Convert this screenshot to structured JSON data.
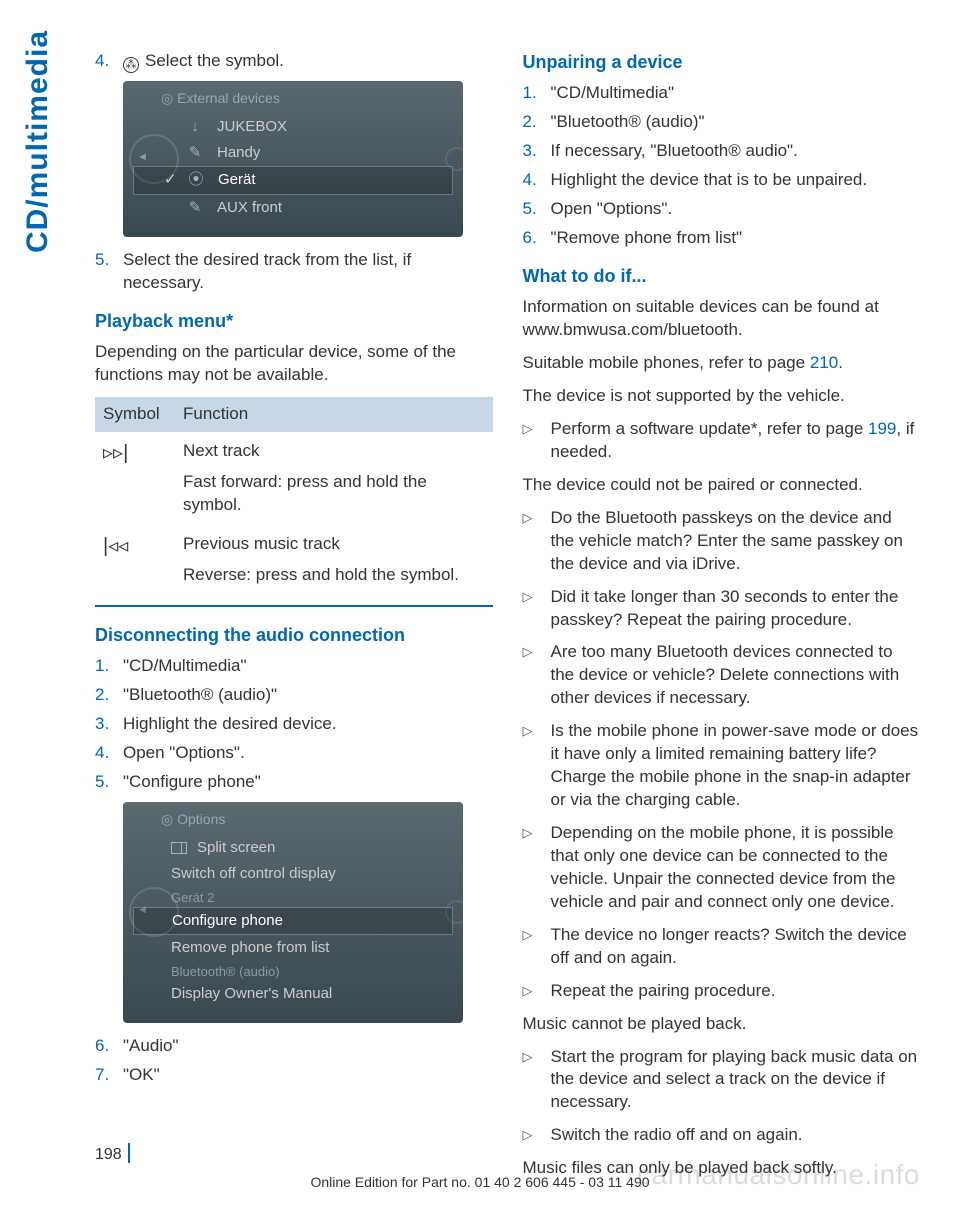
{
  "side_tab": "CD/multimedia",
  "watermark": "carmanualsonline.info",
  "page_number": "198",
  "footer_line": "Online Edition for Part no. 01 40 2 606 445 - 03 11 490",
  "left": {
    "step4": {
      "num": "4.",
      "text": "Select the symbol."
    },
    "shot1": {
      "header": "External devices",
      "rows": [
        {
          "icon": "↓",
          "label": "JUKEBOX"
        },
        {
          "icon": "✎",
          "label": "Handy"
        },
        {
          "icon": "⦿",
          "label": "Gerät"
        },
        {
          "icon": "✎",
          "label": "AUX front"
        }
      ]
    },
    "step5": {
      "num": "5.",
      "text": "Select the desired track from the list, if necessary."
    },
    "playback_h": "Playback menu*",
    "playback_p": "Depending on the particular device, some of the functions may not be available.",
    "tbl": {
      "h1": "Symbol",
      "h2": "Function",
      "r1_sym": "▷▷|",
      "r1a": "Next track",
      "r1b": "Fast forward: press and hold the symbol.",
      "r2_sym": "|◁◁",
      "r2a": "Previous music track",
      "r2b": "Reverse: press and hold the symbol."
    },
    "disc_h": "Disconnecting the audio connection",
    "disc_steps": [
      {
        "num": "1.",
        "text": "\"CD/Multimedia\""
      },
      {
        "num": "2.",
        "text": "\"Bluetooth® (audio)\""
      },
      {
        "num": "3.",
        "text": "Highlight the desired device."
      },
      {
        "num": "4.",
        "text": "Open \"Options\"."
      },
      {
        "num": "5.",
        "text": "\"Configure phone\""
      }
    ],
    "shot2": {
      "header": "Options",
      "rows_top": [
        {
          "label": "Split screen",
          "split": true
        },
        {
          "label": "Switch off control display"
        }
      ],
      "sec1": "Gerät 2",
      "rows_mid": [
        {
          "label": "Configure phone",
          "hl": true
        },
        {
          "label": "Remove phone from list"
        }
      ],
      "sec2": "Bluetooth® (audio)",
      "rows_bot": [
        {
          "label": "Display Owner's Manual"
        }
      ]
    },
    "step6": {
      "num": "6.",
      "text": "\"Audio\""
    },
    "step7": {
      "num": "7.",
      "text": "\"OK\""
    }
  },
  "right": {
    "unpair_h": "Unpairing a device",
    "unpair_steps": [
      {
        "num": "1.",
        "text": "\"CD/Multimedia\""
      },
      {
        "num": "2.",
        "text": "\"Bluetooth® (audio)\""
      },
      {
        "num": "3.",
        "text": "If necessary, \"Bluetooth® audio\"."
      },
      {
        "num": "4.",
        "text": "Highlight the device that is to be unpaired."
      },
      {
        "num": "5.",
        "text": "Open \"Options\"."
      },
      {
        "num": "6.",
        "text": "\"Remove phone from list\""
      }
    ],
    "what_h": "What to do if...",
    "p1": "Information on suitable devices can be found at www.bmwusa.com/bluetooth.",
    "p2a": "Suitable mobile phones, refer to page ",
    "p2_link": "210",
    "p2b": ".",
    "p3": "The device is not supported by the vehicle.",
    "b1a": "Perform a software update*, refer to page ",
    "b1_link": "199",
    "b1b": ", if needed.",
    "p4": "The device could not be paired or connected.",
    "b2": "Do the Bluetooth passkeys on the device and the vehicle match? Enter the same passkey on the device and via iDrive.",
    "b3": "Did it take longer than 30 seconds to enter the passkey? Repeat the pairing procedure.",
    "b4": "Are too many Bluetooth devices connected to the device or vehicle? Delete connections with other devices if necessary.",
    "b5": "Is the mobile phone in power-save mode or does it have only a limited remaining battery life? Charge the mobile phone in the snap-in adapter or via the charging cable.",
    "b6": "Depending on the mobile phone, it is possible that only one device can be connected to the vehicle. Unpair the connected device from the vehicle and pair and connect only one device.",
    "b7": "The device no longer reacts? Switch the device off and on again.",
    "b8": "Repeat the pairing procedure.",
    "p5": "Music cannot be played back.",
    "b9": "Start the program for playing back music data on the device and select a track on the device if necessary.",
    "b10": "Switch the radio off and on again.",
    "p6": "Music files can only be played back softly."
  }
}
